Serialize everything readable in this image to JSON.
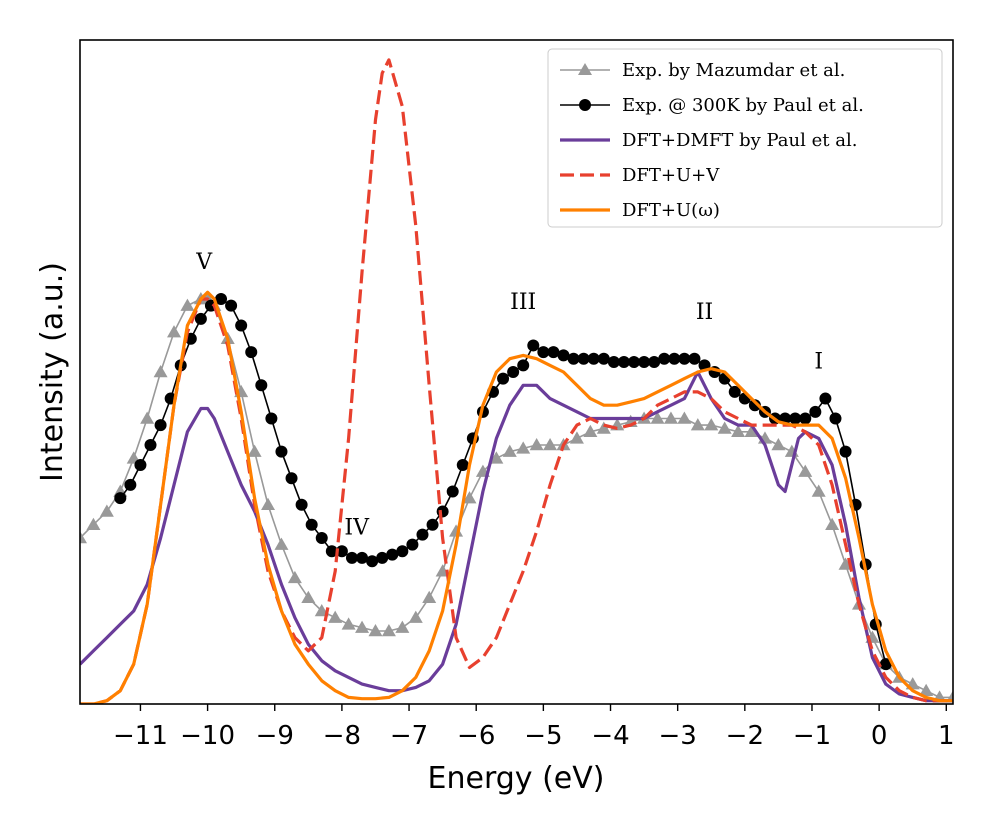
{
  "chart_data": {
    "type": "line",
    "title": "",
    "xlabel": "Energy (eV)",
    "ylabel": "Intensity (a.u.)",
    "xlim": [
      -11.9,
      1.1
    ],
    "ylim": [
      0,
      1.0
    ],
    "grid": false,
    "legend_position": "top-right",
    "xticks": [
      -11,
      -10,
      -9,
      -8,
      -7,
      -6,
      -5,
      -4,
      -3,
      -2,
      -1,
      0,
      1
    ],
    "xtick_labels": [
      "−11",
      "−10",
      "−9",
      "−8",
      "−7",
      "−6",
      "−5",
      "−4",
      "−3",
      "−2",
      "−1",
      "0",
      "1"
    ],
    "annotations": [
      {
        "text": "V",
        "x": -10.05,
        "y": 0.655
      },
      {
        "text": "IV",
        "x": -7.78,
        "y": 0.255
      },
      {
        "text": "III",
        "x": -5.3,
        "y": 0.595
      },
      {
        "text": "II",
        "x": -2.6,
        "y": 0.58
      },
      {
        "text": "I",
        "x": -0.9,
        "y": 0.505
      }
    ],
    "series": [
      {
        "name": "Exp. by Mazumdar et al.",
        "color": "#999999",
        "style": "solid-triangle",
        "x": [
          -11.9,
          -11.7,
          -11.5,
          -11.3,
          -11.1,
          -10.9,
          -10.7,
          -10.5,
          -10.3,
          -10.1,
          -10.0,
          -9.9,
          -9.7,
          -9.5,
          -9.3,
          -9.1,
          -8.9,
          -8.7,
          -8.5,
          -8.3,
          -8.1,
          -7.9,
          -7.7,
          -7.5,
          -7.3,
          -7.1,
          -6.9,
          -6.7,
          -6.5,
          -6.3,
          -6.1,
          -5.9,
          -5.7,
          -5.5,
          -5.3,
          -5.1,
          -4.9,
          -4.7,
          -4.5,
          -4.3,
          -4.1,
          -3.9,
          -3.7,
          -3.5,
          -3.3,
          -3.1,
          -2.9,
          -2.7,
          -2.5,
          -2.3,
          -2.1,
          -1.9,
          -1.7,
          -1.5,
          -1.3,
          -1.1,
          -0.9,
          -0.7,
          -0.5,
          -0.3,
          -0.1,
          0.1,
          0.3,
          0.5,
          0.7,
          0.9,
          1.1
        ],
        "y": [
          0.25,
          0.27,
          0.29,
          0.32,
          0.37,
          0.43,
          0.5,
          0.56,
          0.6,
          0.61,
          0.61,
          0.6,
          0.55,
          0.47,
          0.38,
          0.3,
          0.24,
          0.19,
          0.16,
          0.14,
          0.13,
          0.12,
          0.115,
          0.11,
          0.11,
          0.115,
          0.13,
          0.16,
          0.2,
          0.26,
          0.31,
          0.35,
          0.37,
          0.38,
          0.385,
          0.39,
          0.39,
          0.39,
          0.4,
          0.41,
          0.415,
          0.42,
          0.425,
          0.43,
          0.43,
          0.43,
          0.43,
          0.42,
          0.42,
          0.415,
          0.41,
          0.41,
          0.4,
          0.39,
          0.38,
          0.35,
          0.32,
          0.27,
          0.21,
          0.15,
          0.1,
          0.06,
          0.04,
          0.03,
          0.02,
          0.01,
          0.01
        ]
      },
      {
        "name": "Exp. @ 300K by Paul et al.",
        "color": "#000000",
        "style": "solid-circle",
        "x": [
          -11.3,
          -11.15,
          -11.0,
          -10.85,
          -10.7,
          -10.55,
          -10.4,
          -10.25,
          -10.1,
          -9.95,
          -9.8,
          -9.65,
          -9.5,
          -9.35,
          -9.2,
          -9.05,
          -8.9,
          -8.75,
          -8.6,
          -8.45,
          -8.3,
          -8.15,
          -8.0,
          -7.85,
          -7.7,
          -7.55,
          -7.4,
          -7.25,
          -7.1,
          -6.95,
          -6.8,
          -6.65,
          -6.5,
          -6.35,
          -6.2,
          -6.05,
          -5.9,
          -5.75,
          -5.6,
          -5.45,
          -5.3,
          -5.15,
          -5.0,
          -4.85,
          -4.7,
          -4.55,
          -4.4,
          -4.25,
          -4.1,
          -3.95,
          -3.8,
          -3.65,
          -3.5,
          -3.35,
          -3.2,
          -3.05,
          -2.9,
          -2.75,
          -2.6,
          -2.45,
          -2.3,
          -2.15,
          -2.0,
          -1.85,
          -1.7,
          -1.55,
          -1.4,
          -1.25,
          -1.1,
          -0.95,
          -0.8,
          -0.65,
          -0.5,
          -0.35,
          -0.2,
          -0.05,
          0.1
        ],
        "y": [
          0.31,
          0.33,
          0.36,
          0.39,
          0.42,
          0.46,
          0.51,
          0.55,
          0.58,
          0.6,
          0.61,
          0.6,
          0.57,
          0.53,
          0.48,
          0.43,
          0.38,
          0.34,
          0.3,
          0.27,
          0.25,
          0.23,
          0.23,
          0.22,
          0.22,
          0.215,
          0.22,
          0.225,
          0.23,
          0.24,
          0.255,
          0.27,
          0.29,
          0.32,
          0.36,
          0.4,
          0.44,
          0.47,
          0.49,
          0.5,
          0.51,
          0.54,
          0.53,
          0.53,
          0.525,
          0.52,
          0.52,
          0.52,
          0.52,
          0.515,
          0.515,
          0.515,
          0.515,
          0.515,
          0.52,
          0.52,
          0.52,
          0.52,
          0.51,
          0.5,
          0.49,
          0.47,
          0.46,
          0.45,
          0.44,
          0.43,
          0.43,
          0.43,
          0.43,
          0.44,
          0.46,
          0.43,
          0.38,
          0.3,
          0.21,
          0.12,
          0.06
        ]
      },
      {
        "name": "DFT+DMFT by Paul et al.",
        "color": "#6a3d9a",
        "style": "solid",
        "x": [
          -11.9,
          -11.7,
          -11.5,
          -11.3,
          -11.1,
          -10.9,
          -10.7,
          -10.5,
          -10.3,
          -10.1,
          -10.0,
          -9.9,
          -9.7,
          -9.5,
          -9.3,
          -9.1,
          -8.9,
          -8.7,
          -8.5,
          -8.3,
          -8.1,
          -7.9,
          -7.7,
          -7.5,
          -7.3,
          -7.1,
          -6.9,
          -6.7,
          -6.5,
          -6.3,
          -6.1,
          -5.9,
          -5.7,
          -5.5,
          -5.3,
          -5.1,
          -4.9,
          -4.7,
          -4.5,
          -4.3,
          -4.1,
          -3.9,
          -3.7,
          -3.5,
          -3.3,
          -3.1,
          -2.9,
          -2.8,
          -2.7,
          -2.6,
          -2.5,
          -2.3,
          -2.1,
          -1.9,
          -1.7,
          -1.5,
          -1.4,
          -1.3,
          -1.2,
          -1.1,
          -0.9,
          -0.7,
          -0.5,
          -0.3,
          -0.1,
          0.1,
          0.3,
          0.5,
          0.7,
          0.9,
          1.1
        ],
        "y": [
          0.06,
          0.08,
          0.1,
          0.12,
          0.14,
          0.18,
          0.25,
          0.33,
          0.41,
          0.445,
          0.445,
          0.43,
          0.38,
          0.33,
          0.29,
          0.24,
          0.18,
          0.13,
          0.09,
          0.065,
          0.05,
          0.04,
          0.03,
          0.025,
          0.02,
          0.02,
          0.025,
          0.035,
          0.06,
          0.12,
          0.22,
          0.32,
          0.4,
          0.45,
          0.48,
          0.48,
          0.46,
          0.45,
          0.44,
          0.43,
          0.43,
          0.43,
          0.43,
          0.43,
          0.44,
          0.45,
          0.46,
          0.48,
          0.5,
          0.48,
          0.46,
          0.43,
          0.42,
          0.42,
          0.39,
          0.33,
          0.32,
          0.36,
          0.4,
          0.41,
          0.4,
          0.36,
          0.27,
          0.16,
          0.07,
          0.03,
          0.015,
          0.01,
          0.005,
          0.005,
          0.005
        ]
      },
      {
        "name": "DFT+U+V",
        "color": "#e8402e",
        "style": "dashed",
        "x": [
          -11.9,
          -11.7,
          -11.5,
          -11.3,
          -11.1,
          -10.9,
          -10.7,
          -10.5,
          -10.3,
          -10.1,
          -10.0,
          -9.9,
          -9.7,
          -9.5,
          -9.3,
          -9.1,
          -8.9,
          -8.7,
          -8.5,
          -8.3,
          -8.1,
          -7.9,
          -7.7,
          -7.5,
          -7.4,
          -7.3,
          -7.1,
          -6.9,
          -6.7,
          -6.5,
          -6.3,
          -6.1,
          -5.9,
          -5.7,
          -5.5,
          -5.3,
          -5.1,
          -4.9,
          -4.7,
          -4.5,
          -4.3,
          -4.1,
          -3.9,
          -3.7,
          -3.5,
          -3.3,
          -3.1,
          -2.9,
          -2.7,
          -2.5,
          -2.3,
          -2.1,
          -1.9,
          -1.7,
          -1.5,
          -1.3,
          -1.1,
          -0.9,
          -0.7,
          -0.5,
          -0.3,
          -0.1,
          0.1,
          0.3,
          0.5,
          0.7,
          0.9,
          1.1
        ],
        "y": [
          0.0,
          0.0,
          0.005,
          0.02,
          0.06,
          0.15,
          0.3,
          0.45,
          0.56,
          0.61,
          0.61,
          0.6,
          0.54,
          0.43,
          0.3,
          0.2,
          0.14,
          0.1,
          0.08,
          0.1,
          0.2,
          0.4,
          0.65,
          0.88,
          0.95,
          0.97,
          0.9,
          0.72,
          0.48,
          0.25,
          0.1,
          0.055,
          0.07,
          0.1,
          0.15,
          0.2,
          0.26,
          0.33,
          0.39,
          0.42,
          0.43,
          0.42,
          0.415,
          0.42,
          0.43,
          0.45,
          0.46,
          0.47,
          0.47,
          0.46,
          0.44,
          0.43,
          0.42,
          0.42,
          0.42,
          0.42,
          0.41,
          0.39,
          0.33,
          0.24,
          0.15,
          0.08,
          0.04,
          0.02,
          0.01,
          0.005,
          0.005,
          0.005
        ]
      },
      {
        "name": "DFT+U(ω)",
        "color": "#ff8000",
        "style": "solid",
        "x": [
          -11.9,
          -11.7,
          -11.5,
          -11.3,
          -11.1,
          -10.9,
          -10.7,
          -10.5,
          -10.3,
          -10.1,
          -10.0,
          -9.9,
          -9.7,
          -9.5,
          -9.3,
          -9.1,
          -8.9,
          -8.7,
          -8.5,
          -8.3,
          -8.1,
          -7.9,
          -7.7,
          -7.5,
          -7.3,
          -7.1,
          -6.9,
          -6.7,
          -6.5,
          -6.3,
          -6.1,
          -5.9,
          -5.7,
          -5.5,
          -5.3,
          -5.1,
          -4.9,
          -4.7,
          -4.5,
          -4.3,
          -4.1,
          -3.9,
          -3.7,
          -3.5,
          -3.3,
          -3.1,
          -2.9,
          -2.7,
          -2.5,
          -2.3,
          -2.1,
          -1.9,
          -1.7,
          -1.5,
          -1.3,
          -1.1,
          -0.9,
          -0.7,
          -0.5,
          -0.3,
          -0.1,
          0.1,
          0.3,
          0.5,
          0.7,
          0.9,
          1.1
        ],
        "y": [
          0.0,
          0.0,
          0.005,
          0.02,
          0.06,
          0.15,
          0.3,
          0.45,
          0.57,
          0.61,
          0.62,
          0.61,
          0.55,
          0.44,
          0.31,
          0.21,
          0.14,
          0.09,
          0.06,
          0.035,
          0.02,
          0.01,
          0.008,
          0.008,
          0.01,
          0.02,
          0.04,
          0.08,
          0.14,
          0.24,
          0.36,
          0.45,
          0.5,
          0.52,
          0.525,
          0.52,
          0.51,
          0.5,
          0.48,
          0.46,
          0.45,
          0.45,
          0.455,
          0.46,
          0.47,
          0.48,
          0.49,
          0.5,
          0.505,
          0.5,
          0.48,
          0.46,
          0.44,
          0.425,
          0.42,
          0.42,
          0.42,
          0.4,
          0.34,
          0.25,
          0.15,
          0.08,
          0.04,
          0.02,
          0.01,
          0.005,
          0.005
        ]
      }
    ]
  }
}
